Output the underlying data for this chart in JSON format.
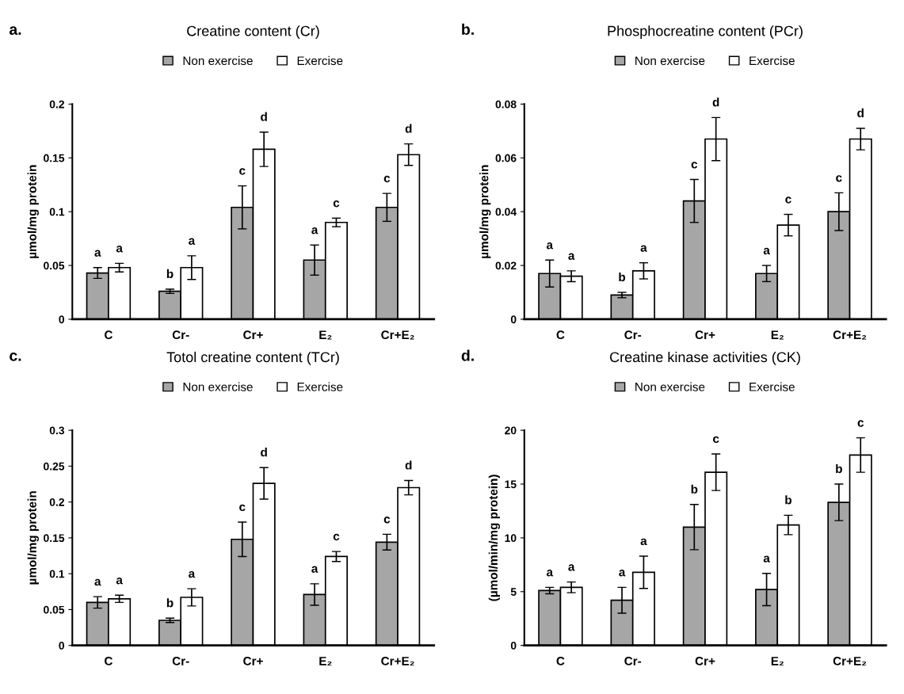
{
  "chart_data": [
    {
      "type": "bar",
      "title": "Creatine content (Cr)",
      "ylabel": "µmol/mg protein",
      "annotations": [
        "a."
      ],
      "categories": [
        "C",
        "Cr-",
        "Cr+",
        "E₂",
        "Cr+E₂"
      ],
      "legend": "top",
      "ylim": [
        0,
        0.2
      ],
      "yticks": [
        0,
        0.05,
        0.1,
        0.15,
        0.2
      ],
      "series": [
        {
          "name": "Non exercise",
          "color": "#a6a6a6",
          "values": [
            0.043,
            0.026,
            0.104,
            0.055,
            0.104
          ],
          "errors": [
            0.005,
            0.002,
            0.02,
            0.014,
            0.013
          ],
          "value_labels": [
            "a",
            "b",
            "c",
            "a",
            "c"
          ]
        },
        {
          "name": "Exercise",
          "color": "#ffffff",
          "values": [
            0.048,
            0.048,
            0.158,
            0.09,
            0.153
          ],
          "errors": [
            0.004,
            0.011,
            0.016,
            0.004,
            0.01
          ],
          "value_labels": [
            "a",
            "a",
            "d",
            "c",
            "d"
          ]
        }
      ]
    },
    {
      "type": "bar",
      "title": "Phosphocreatine content (PCr)",
      "ylabel": "µmol/mg protein",
      "annotations": [
        "b."
      ],
      "categories": [
        "C",
        "Cr-",
        "Cr+",
        "E₂",
        "Cr+E₂"
      ],
      "legend": "top",
      "ylim": [
        0,
        0.08
      ],
      "yticks": [
        0,
        0.02,
        0.04,
        0.06,
        0.08
      ],
      "series": [
        {
          "name": "Non exercise",
          "color": "#a6a6a6",
          "values": [
            0.017,
            0.009,
            0.044,
            0.017,
            0.04
          ],
          "errors": [
            0.005,
            0.001,
            0.008,
            0.003,
            0.007
          ],
          "value_labels": [
            "a",
            "b",
            "c",
            "a",
            "c"
          ]
        },
        {
          "name": "Exercise",
          "color": "#ffffff",
          "values": [
            0.016,
            0.018,
            0.067,
            0.035,
            0.067
          ],
          "errors": [
            0.002,
            0.003,
            0.008,
            0.004,
            0.004
          ],
          "value_labels": [
            "a",
            "a",
            "d",
            "c",
            "d"
          ]
        }
      ]
    },
    {
      "type": "bar",
      "title": "Totol creatine content (TCr)",
      "ylabel": "µmol/mg protein",
      "annotations": [
        "c."
      ],
      "categories": [
        "C",
        "Cr-",
        "Cr+",
        "E₂",
        "Cr+E₂"
      ],
      "legend": "top",
      "ylim": [
        0,
        0.3
      ],
      "yticks": [
        0,
        0.05,
        0.1,
        0.15,
        0.2,
        0.25,
        0.3
      ],
      "series": [
        {
          "name": "Non exercise",
          "color": "#a6a6a6",
          "values": [
            0.06,
            0.035,
            0.148,
            0.071,
            0.144
          ],
          "errors": [
            0.008,
            0.003,
            0.024,
            0.015,
            0.011
          ],
          "value_labels": [
            "a",
            "b",
            "c",
            "a",
            "c"
          ]
        },
        {
          "name": "Exercise",
          "color": "#ffffff",
          "values": [
            0.065,
            0.067,
            0.226,
            0.124,
            0.22
          ],
          "errors": [
            0.005,
            0.012,
            0.022,
            0.007,
            0.01
          ],
          "value_labels": [
            "a",
            "a",
            "d",
            "c",
            "d"
          ]
        }
      ]
    },
    {
      "type": "bar",
      "title": "Creatine kinase activities (CK)",
      "ylabel": "(µmol/min/mg protein)",
      "annotations": [
        "d."
      ],
      "categories": [
        "C",
        "Cr-",
        "Cr+",
        "E₂",
        "Cr+E₂"
      ],
      "legend": "top",
      "ylim": [
        0,
        20
      ],
      "yticks": [
        0,
        5,
        10,
        15,
        20
      ],
      "series": [
        {
          "name": "Non exercise",
          "color": "#a6a6a6",
          "values": [
            5.1,
            4.2,
            11.0,
            5.2,
            13.3
          ],
          "errors": [
            0.3,
            1.2,
            2.1,
            1.5,
            1.7
          ],
          "value_labels": [
            "a",
            "a",
            "b",
            "a",
            "b"
          ]
        },
        {
          "name": "Exercise",
          "color": "#ffffff",
          "values": [
            5.4,
            6.8,
            16.1,
            11.2,
            17.7
          ],
          "errors": [
            0.5,
            1.5,
            1.7,
            0.9,
            1.6
          ],
          "value_labels": [
            "a",
            "a",
            "c",
            "b",
            "c"
          ]
        }
      ]
    }
  ]
}
